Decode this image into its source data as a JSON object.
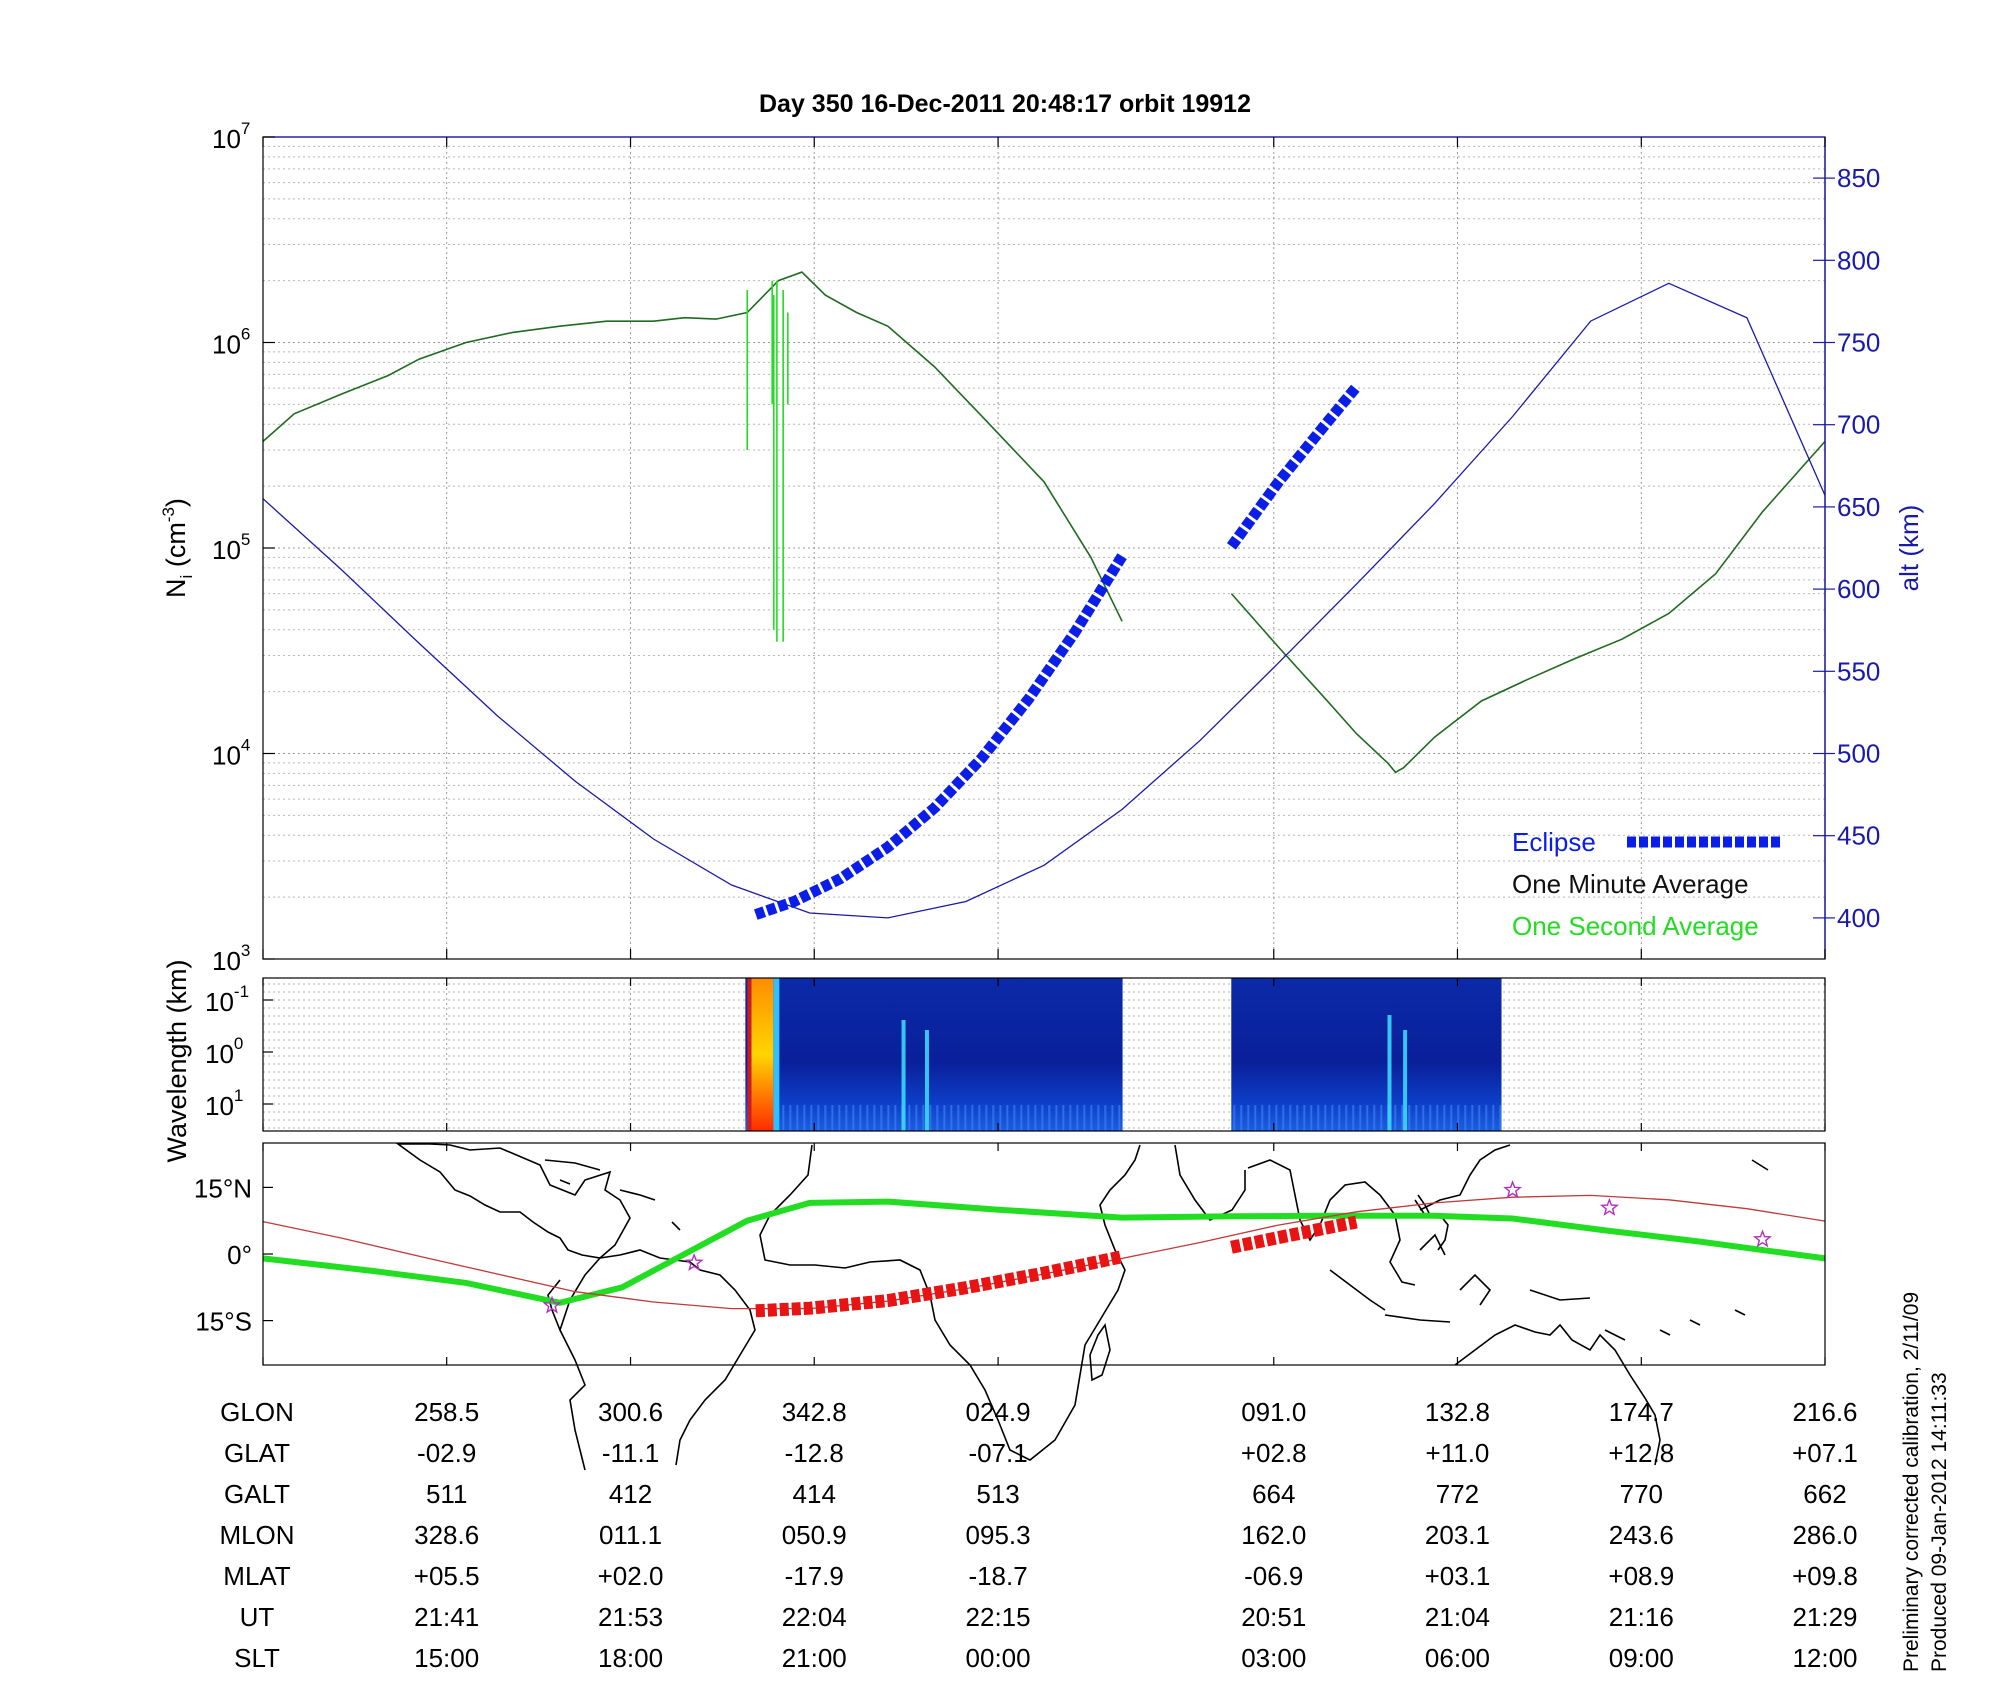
{
  "chart_data": [
    {
      "type": "line",
      "title": "Day 350  16-Dec-2011 20:48:17   orbit 19912",
      "ylabel": "N_i (cm^-3)",
      "yscale": "log",
      "ylim": [
        1000,
        10000000
      ],
      "y_ticks": [
        {
          "value": 1000,
          "base": "10",
          "exp": "3"
        },
        {
          "value": 10000,
          "base": "10",
          "exp": "4"
        },
        {
          "value": 100000,
          "base": "10",
          "exp": "5"
        },
        {
          "value": 1000000,
          "base": "10",
          "exp": "6"
        },
        {
          "value": 10000000,
          "base": "10",
          "exp": "7"
        }
      ],
      "y2label": "alt (km)",
      "y2lim": [
        375,
        875
      ],
      "y2_ticks": [
        400,
        450,
        500,
        550,
        600,
        650,
        700,
        750,
        800,
        850
      ],
      "xlim": [
        0,
        1
      ],
      "x_ticks": [
        0,
        0.1176,
        0.2353,
        0.3529,
        0.4706,
        0.6471,
        0.7647,
        0.8824,
        1.0
      ],
      "grid": true,
      "legend": {
        "placement": "bottom-right",
        "entries": [
          {
            "label": "Eclipse",
            "color": "#0a1ee8"
          },
          {
            "label": "One Minute Average",
            "color": "#111111"
          },
          {
            "label": "One Second Average",
            "color": "#22dd22"
          }
        ]
      },
      "series": [
        {
          "kind": "density",
          "color": "#1f6b1f",
          "x": [
            0,
            0.02,
            0.05,
            0.08,
            0.1,
            0.13,
            0.16,
            0.19,
            0.22,
            0.25,
            0.27,
            0.29,
            0.31,
            0.33,
            0.345,
            0.36,
            0.38,
            0.4,
            0.43,
            0.46,
            0.5,
            0.53,
            0.55
          ],
          "y": [
            330000,
            450000,
            560000,
            690000,
            830000,
            1000000,
            1120000,
            1200000,
            1270000,
            1270000,
            1320000,
            1300000,
            1400000,
            2000000,
            2200000,
            1700000,
            1400000,
            1200000,
            760000,
            440000,
            210000,
            90000,
            44000
          ]
        },
        {
          "kind": "density",
          "color": "#1f6b1f",
          "x": [
            0.62,
            0.65,
            0.68,
            0.7,
            0.72,
            0.725,
            0.73,
            0.75,
            0.78,
            0.81,
            0.84,
            0.87,
            0.9,
            0.93,
            0.96,
            1.0
          ],
          "y": [
            60000,
            33000,
            18500,
            12500,
            9000,
            8100,
            8500,
            12000,
            18000,
            23000,
            29000,
            36000,
            48000,
            75000,
            150000,
            330000
          ]
        },
        {
          "kind": "altitude",
          "color": "#1a1aaa",
          "x": [
            0,
            0.05,
            0.1,
            0.15,
            0.2,
            0.25,
            0.3,
            0.35,
            0.4,
            0.45,
            0.5,
            0.55,
            0.6,
            0.65,
            0.7,
            0.75,
            0.8,
            0.85,
            0.9,
            0.95,
            1.0
          ],
          "y": [
            655,
            612,
            567,
            523,
            483,
            448,
            420,
            403,
            400,
            410,
            432,
            466,
            508,
            555,
            603,
            652,
            705,
            763,
            786,
            765,
            657
          ]
        },
        {
          "kind": "eclipse",
          "color": "#0a1ee8",
          "x": [
            0.3155,
            0.34,
            0.37,
            0.4,
            0.43,
            0.46,
            0.49,
            0.52,
            0.55
          ],
          "y": [
            402,
            410,
            424,
            443,
            467,
            497,
            533,
            574,
            620
          ]
        },
        {
          "kind": "eclipse",
          "color": "#0a1ee8",
          "x": [
            0.62,
            0.65,
            0.68,
            0.7
          ],
          "y": [
            626,
            665,
            700,
            723
          ]
        }
      ]
    },
    {
      "type": "heatmap",
      "ylabel": "Wavelength (km)",
      "y_ticks": [
        {
          "base": "10",
          "exp": "-1"
        },
        {
          "base": "10",
          "exp": "0"
        },
        {
          "base": "10",
          "exp": "1"
        }
      ],
      "blocks": [
        {
          "x0": 0.3088,
          "x1": 0.5503
        },
        {
          "x0": 0.6199,
          "x1": 0.7929
        }
      ]
    },
    {
      "type": "line",
      "y_ticks": [
        {
          "value": 15,
          "label": "15°N"
        },
        {
          "value": 0,
          "label": "0°"
        },
        {
          "value": -15,
          "label": "15°S"
        }
      ],
      "ylim": [
        -25,
        25
      ],
      "series": [
        {
          "kind": "magnetic-equator",
          "color": "#22dd22",
          "x": [
            0,
            0.07,
            0.13,
            0.19,
            0.23,
            0.27,
            0.31,
            0.35,
            0.4,
            0.47,
            0.55,
            0.62,
            0.68,
            0.75,
            0.8,
            0.86,
            0.92,
            1.0
          ],
          "y": [
            -1,
            -3.8,
            -6.5,
            -11,
            -7.5,
            0,
            7.5,
            11.5,
            11.8,
            10,
            8.2,
            8.5,
            8.6,
            8.6,
            8,
            5.3,
            2.8,
            -1
          ]
        },
        {
          "kind": "ground-track",
          "color": "#c03a3a",
          "x": [
            0,
            0.05,
            0.1,
            0.15,
            0.2,
            0.25,
            0.3,
            0.35,
            0.4,
            0.45,
            0.5,
            0.55,
            0.6,
            0.65,
            0.7,
            0.75,
            0.8,
            0.85,
            0.9,
            0.95,
            1.0
          ],
          "y": [
            7.3,
            3.6,
            -0.5,
            -4.5,
            -8.5,
            -10.8,
            -12.3,
            -12.3,
            -10.6,
            -7.8,
            -4.5,
            -1,
            2.6,
            6.5,
            9.5,
            11.5,
            12.8,
            13.2,
            12.2,
            10.2,
            7.4
          ]
        },
        {
          "kind": "eclipse-track",
          "color": "#e81414",
          "x": [
            0.3155,
            0.35,
            0.4,
            0.45,
            0.5,
            0.55
          ],
          "y": [
            -12.8,
            -12.2,
            -10.5,
            -7.6,
            -4.3,
            -0.6
          ]
        },
        {
          "kind": "eclipse-track",
          "color": "#e81414",
          "x": [
            0.62,
            0.65,
            0.68,
            0.7
          ],
          "y": [
            1.5,
            3.7,
            5.8,
            7.2
          ]
        }
      ],
      "markers": [
        {
          "x": 0.185,
          "y": -11.6
        },
        {
          "x": 0.276,
          "y": -2
        },
        {
          "x": 0.8,
          "y": 14.4
        },
        {
          "x": 0.862,
          "y": 10.4
        },
        {
          "x": 0.96,
          "y": 3.3
        }
      ]
    }
  ],
  "table": {
    "rows": [
      {
        "label": "GLON",
        "values": [
          "258.5",
          "300.6",
          "342.8",
          "024.9",
          "091.0",
          "132.8",
          "174.7",
          "216.6"
        ]
      },
      {
        "label": "GLAT",
        "values": [
          "-02.9",
          "-11.1",
          "-12.8",
          "-07.1",
          "+02.8",
          "+11.0",
          "+12.8",
          "+07.1"
        ]
      },
      {
        "label": "GALT",
        "values": [
          "511",
          "412",
          "414",
          "513",
          "664",
          "772",
          "770",
          "662"
        ]
      },
      {
        "label": "MLON",
        "values": [
          "328.6",
          "011.1",
          "050.9",
          "095.3",
          "162.0",
          "203.1",
          "243.6",
          "286.0"
        ]
      },
      {
        "label": "MLAT",
        "values": [
          "+05.5",
          "+02.0",
          "-17.9",
          "-18.7",
          "-06.9",
          "+03.1",
          "+08.9",
          "+09.8"
        ]
      },
      {
        "label": "UT",
        "values": [
          "21:41",
          "21:53",
          "22:04",
          "22:15",
          "20:51",
          "21:04",
          "21:16",
          "21:29"
        ]
      },
      {
        "label": "SLT",
        "values": [
          "15:00",
          "18:00",
          "21:00",
          "00:00",
          "03:00",
          "06:00",
          "09:00",
          "12:00"
        ]
      }
    ]
  },
  "footer": {
    "line1": "Preliminary corrected calibration, 2/11/09",
    "line2": "Produced 09-Jan-2012 14:11:33"
  }
}
